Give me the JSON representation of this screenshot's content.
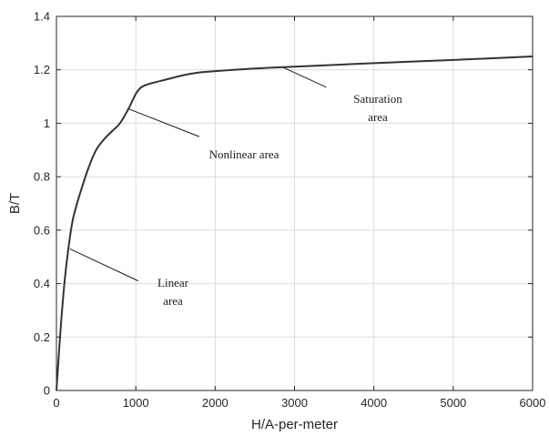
{
  "chart_data": {
    "type": "line",
    "title": "",
    "xlabel": "H/A-per-meter",
    "ylabel": "B/T",
    "xlim": [
      0,
      6000
    ],
    "ylim": [
      0,
      1.4
    ],
    "grid": true,
    "xticks": [
      0,
      1000,
      2000,
      3000,
      4000,
      5000,
      6000
    ],
    "xtick_labels": [
      "0",
      "1000",
      "2000",
      "3000",
      "4000",
      "5000",
      "6000"
    ],
    "yticks": [
      0,
      0.2,
      0.4,
      0.6,
      0.8,
      1.0,
      1.2,
      1.4
    ],
    "ytick_labels": [
      "0",
      "0.2",
      "0.4",
      "0.6",
      "0.8",
      "1",
      "1.2",
      "1.4"
    ],
    "series": [
      {
        "x": [
          0,
          50,
          100,
          150,
          200,
          250,
          300,
          400,
          500,
          600,
          700,
          800,
          900,
          950,
          1000,
          1050,
          1100,
          1200,
          1400,
          1600,
          1800,
          2000,
          2500,
          3000,
          4000,
          5000,
          6000
        ],
        "y": [
          0,
          0.22,
          0.4,
          0.53,
          0.63,
          0.69,
          0.74,
          0.83,
          0.9,
          0.94,
          0.97,
          1.0,
          1.05,
          1.08,
          1.11,
          1.13,
          1.14,
          1.15,
          1.165,
          1.18,
          1.19,
          1.195,
          1.205,
          1.212,
          1.225,
          1.237,
          1.25
        ],
        "color": "#333333"
      }
    ],
    "annotations": [
      {
        "lines": [
          "Saturation",
          "area"
        ],
        "pointer_from": [
          3400,
          1.135
        ],
        "pointer_to": [
          2850,
          1.21
        ]
      },
      {
        "lines": [
          "Nonlinear area"
        ],
        "pointer_from": [
          1800,
          0.95
        ],
        "pointer_to": [
          900,
          1.055
        ]
      },
      {
        "lines": [
          "Linear",
          "area"
        ],
        "pointer_from": [
          1030,
          0.41
        ],
        "pointer_to": [
          170,
          0.53
        ]
      }
    ]
  }
}
